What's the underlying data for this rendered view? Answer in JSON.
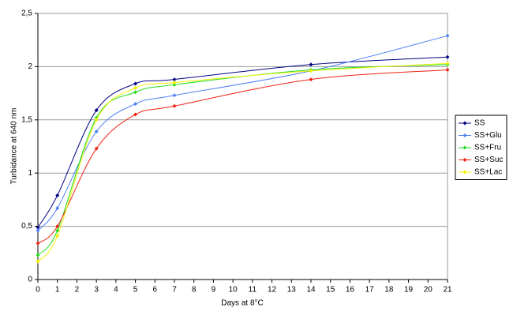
{
  "chart_data": {
    "type": "line",
    "x_label": "Days at 8°C",
    "y_label": "Turbidance at 640 nm",
    "x": [
      0,
      1,
      3,
      5,
      7,
      14,
      21
    ],
    "series": [
      {
        "name": "SS",
        "color": "#000080",
        "values": [
          0.49,
          0.79,
          1.59,
          1.84,
          1.88,
          2.02,
          2.09
        ]
      },
      {
        "name": "SS+Glu",
        "color": "#4f81f5",
        "values": [
          0.46,
          0.67,
          1.39,
          1.65,
          1.73,
          1.96,
          2.29
        ]
      },
      {
        "name": "SS+Fru",
        "color": "#22dd22",
        "values": [
          0.23,
          0.46,
          1.52,
          1.76,
          1.83,
          1.97,
          2.02
        ]
      },
      {
        "name": "SS+Suc",
        "color": "#ee2211",
        "values": [
          0.34,
          0.5,
          1.23,
          1.55,
          1.63,
          1.88,
          1.97
        ]
      },
      {
        "name": "SS+Lac",
        "color": "#f0f000",
        "values": [
          0.17,
          0.41,
          1.5,
          1.8,
          1.85,
          1.96,
          2.03
        ]
      }
    ],
    "xlim": [
      0,
      21
    ],
    "xticks": [
      0,
      1,
      2,
      3,
      4,
      5,
      6,
      7,
      8,
      9,
      10,
      11,
      12,
      13,
      14,
      15,
      16,
      17,
      18,
      19,
      20,
      21
    ],
    "ylim": [
      0,
      2.5
    ],
    "yticks": [
      0,
      {
        "value": 0.5,
        "label": "0,5"
      },
      1,
      {
        "value": 1.5,
        "label": "1,5"
      },
      2,
      {
        "value": 2.5,
        "label": "2,5"
      }
    ],
    "grid": true,
    "smooth": true,
    "legend": "right"
  }
}
